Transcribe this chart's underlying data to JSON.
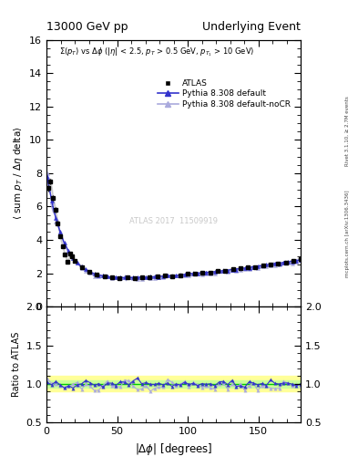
{
  "title_left": "13000 GeV pp",
  "title_right": "Underlying Event",
  "annotation": "Σ(p_{T}) vs Δϕ (|η| < 2.5, p_{T} > 0.5 GeV, p_{T1} > 10 GeV)",
  "ylabel_main": "⟨ sum p_T / Δη delta⟩",
  "ylabel_ratio": "Ratio to ATLAS",
  "xlabel": "|#Delta#phi| [degrees]",
  "right_label1": "Rivet 3.1.10, ≥ 2.7M events",
  "right_label2": "mcplots.cern.ch [arXiv:1306.3436]",
  "watermark": "ATLAS 2017  11509919",
  "ylim_main": [
    0,
    16
  ],
  "ylim_ratio": [
    0.5,
    2.0
  ],
  "xlim": [
    0,
    180
  ],
  "yticks_main": [
    0,
    2,
    4,
    6,
    8,
    10,
    12,
    14,
    16
  ],
  "yticks_ratio": [
    0.5,
    1.0,
    1.5,
    2.0
  ],
  "xticks": [
    0,
    50,
    100,
    150
  ],
  "bg_color": "#ffffff",
  "atlas_color": "#000000",
  "pythia_default_color": "#3333cc",
  "pythia_nocr_color": "#aaaadd",
  "green_line_color": "#00cc00",
  "yellow_band_color": "#ffff99",
  "green_band_color": "#ccff99"
}
